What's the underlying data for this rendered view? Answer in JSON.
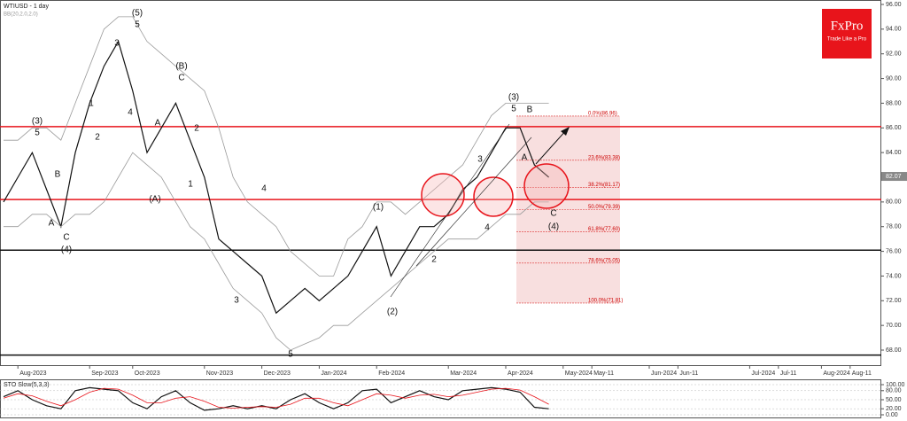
{
  "chart_data": [
    {
      "type": "line",
      "title": "WTIUSD - 1 day",
      "subtitle": "BB(20,2.0,2.0)",
      "logo": "FxPro",
      "logo_tagline": "Trade Like a Pro",
      "categories": [
        null,
        "Aug-2023",
        null,
        null,
        null,
        null,
        "Sep-2023",
        null,
        null,
        "Oct-2023",
        null,
        null,
        null,
        null,
        "Nov-2023",
        null,
        null,
        null,
        "Dec-2023",
        null,
        null,
        null,
        "Jan-2024",
        null,
        null,
        null,
        "Feb-2024",
        null,
        null,
        null,
        null,
        "Mar-2024",
        null,
        null,
        null,
        "Apr-2024",
        null,
        null,
        null,
        "May-2024",
        null,
        "May-11",
        null,
        null,
        null,
        "Jun-2024",
        null,
        "Jun-11",
        null,
        null,
        null,
        null,
        "Jul-2024",
        null,
        "Jul-11",
        null,
        null,
        "Aug-2024",
        null,
        "Aug-11",
        null
      ],
      "series": [
        {
          "color": "#111111",
          "values": [
            80,
            82,
            84,
            81,
            78,
            84,
            88,
            91,
            93,
            89,
            84,
            86,
            88,
            85,
            82,
            77,
            76,
            75,
            74,
            71,
            72,
            73,
            72,
            73,
            74,
            76,
            78,
            74,
            76,
            78,
            78,
            79,
            81,
            82,
            84,
            86,
            86,
            83,
            82,
            null,
            null,
            null,
            null,
            null,
            null,
            null,
            null,
            null,
            null,
            null,
            null,
            null,
            null,
            null,
            null,
            null,
            null,
            null,
            null,
            null,
            null
          ]
        },
        {
          "color": "#9a9a9a",
          "values": [
            85,
            85,
            86,
            86,
            85,
            88,
            91,
            94,
            95,
            95,
            93,
            92,
            91,
            90,
            89,
            86,
            82,
            80,
            79,
            78,
            76,
            75,
            74,
            74,
            77,
            78,
            80,
            80,
            79,
            80,
            81,
            82,
            83,
            85,
            87,
            88,
            88,
            88,
            88,
            null,
            null,
            null,
            null,
            null,
            null,
            null,
            null,
            null,
            null,
            null,
            null,
            null,
            null,
            null,
            null,
            null,
            null,
            null,
            null,
            null,
            null
          ]
        },
        {
          "color": "#9a9a9a",
          "values": [
            78,
            78,
            79,
            79,
            78,
            79,
            79,
            80,
            82,
            84,
            83,
            82,
            80,
            78,
            77,
            75,
            73,
            72,
            71,
            69,
            68,
            68.5,
            69,
            70,
            70,
            71,
            72,
            73,
            74,
            75,
            76,
            77,
            77,
            77,
            78,
            79,
            79,
            80,
            80,
            null,
            null,
            null,
            null,
            null,
            null,
            null,
            null,
            null,
            null,
            null,
            null,
            null,
            null,
            null,
            null,
            null,
            null,
            null,
            null,
            null,
            null
          ]
        }
      ],
      "ylim": [
        66.78,
        96.36
      ],
      "yticks": [
        {
          "value": 68,
          "label": "68.00"
        },
        {
          "value": 70,
          "label": "70.00"
        },
        {
          "value": 72,
          "label": "72.00"
        },
        {
          "value": 74,
          "label": "74.00"
        },
        {
          "value": 76,
          "label": "76.00"
        },
        {
          "value": 78,
          "label": "78.00"
        },
        {
          "value": 80,
          "label": "80.00"
        },
        {
          "value": 82,
          "label": "82.00"
        },
        {
          "value": 84,
          "label": "84.00"
        },
        {
          "value": 86,
          "label": "86.00"
        },
        {
          "value": 88,
          "label": "88.00"
        },
        {
          "value": 90,
          "label": "90.00"
        },
        {
          "value": 92,
          "label": "92.00"
        },
        {
          "value": 94,
          "label": "94.00"
        },
        {
          "value": 96,
          "label": "96.00"
        }
      ],
      "last_price": 82.07,
      "levels": [
        {
          "value": 86.1,
          "color": "#e8141b"
        },
        {
          "value": 80.2,
          "color": "#e8141b"
        },
        {
          "value": 76.1,
          "color": "#111111"
        },
        {
          "value": 67.6,
          "color": "#111111"
        }
      ],
      "fib_levels": [
        {
          "value": 86.96,
          "label": "0.0%(86.96)"
        },
        {
          "value": 83.38,
          "label": "23.6%(83.38)"
        },
        {
          "value": 81.17,
          "label": "38.2%(81.17)"
        },
        {
          "value": 79.39,
          "label": "50.0%(79.39)"
        },
        {
          "value": 77.6,
          "label": "61.8%(77.60)"
        },
        {
          "value": 75.05,
          "label": "78.6%(75.05)"
        },
        {
          "value": 71.81,
          "label": "100.0%(71.81)"
        }
      ],
      "annotations": [
        "(3)",
        "5",
        "B",
        "A",
        "C",
        "(4)",
        "1",
        "2",
        "3",
        "4",
        "(5)",
        "5",
        "A",
        "(A)",
        "(B)",
        "C",
        "2",
        "1",
        "3",
        "4",
        "5",
        "(1)",
        "(2)",
        "2",
        "3",
        "4",
        "(3)",
        "5",
        "B",
        "A",
        "C",
        "(4)"
      ]
    },
    {
      "type": "line",
      "title": "STO Slow(5,3,3)",
      "series": [
        {
          "color": "#111111",
          "values": [
            60,
            80,
            50,
            30,
            20,
            80,
            90,
            85,
            80,
            40,
            20,
            60,
            80,
            40,
            15,
            20,
            30,
            20,
            30,
            20,
            50,
            70,
            40,
            20,
            40,
            80,
            85,
            40,
            60,
            80,
            60,
            50,
            80,
            85,
            90,
            85,
            75,
            25,
            20,
            null,
            null,
            null,
            null,
            null,
            null,
            null,
            null,
            null,
            null,
            null,
            null,
            null,
            null,
            null,
            null,
            null,
            null,
            null,
            null,
            null,
            null
          ]
        },
        {
          "color": "#e8141b",
          "values": [
            55,
            70,
            63,
            45,
            30,
            50,
            75,
            88,
            85,
            65,
            40,
            40,
            55,
            60,
            45,
            25,
            22,
            25,
            27,
            25,
            35,
            55,
            55,
            40,
            30,
            50,
            70,
            65,
            55,
            65,
            68,
            60,
            65,
            75,
            85,
            88,
            82,
            60,
            35,
            null,
            null,
            null,
            null,
            null,
            null,
            null,
            null,
            null,
            null,
            null,
            null,
            null,
            null,
            null,
            null,
            null,
            null,
            null,
            null,
            null,
            null
          ]
        }
      ],
      "ylim": [
        -11.8,
        117.6
      ],
      "yticks": [
        {
          "value": 100,
          "label": "100.00"
        },
        {
          "value": 80,
          "label": "80.00"
        },
        {
          "value": 50,
          "label": "50.00"
        },
        {
          "value": 20,
          "label": "20.00"
        },
        {
          "value": 0,
          "label": "0.00"
        }
      ]
    }
  ]
}
